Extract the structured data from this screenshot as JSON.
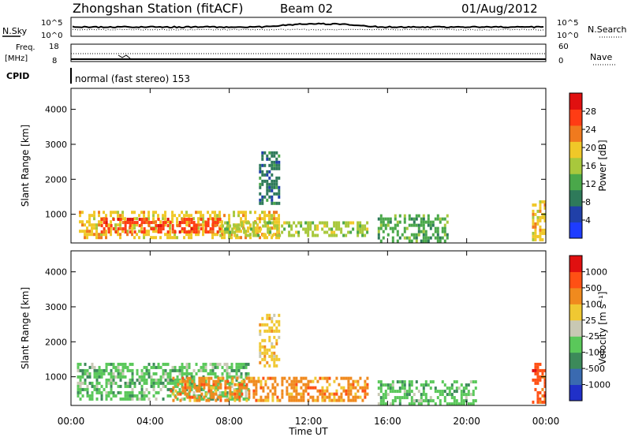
{
  "header": {
    "station": "Zhongshan Station (fitACF)",
    "beam": "Beam 02",
    "date": "01/Aug/2012"
  },
  "top_panels": {
    "nsky_label": "N.Sky",
    "nsky_ticks": [
      "10^5",
      "10^0"
    ],
    "nsearch_label": "N.Search",
    "nsearch_ticks": [
      "10^5",
      "10^0"
    ],
    "freq_label": "Freq.",
    "freq_unit": "[MHz]",
    "freq_ticks": [
      "18",
      "8"
    ],
    "nave_label": "Nave",
    "nave_ticks": [
      "60",
      "0"
    ],
    "cpid_label": "CPID",
    "cpid_text": "normal (fast stereo) 153"
  },
  "x_axis": {
    "title": "Time UT",
    "ticks": [
      "00:00",
      "04:00",
      "08:00",
      "12:00",
      "16:00",
      "20:00",
      "00:00"
    ]
  },
  "power_panel": {
    "ylabel": "Slant Range [km]",
    "yticks": [
      "4000",
      "3000",
      "2000",
      "1000"
    ],
    "cbar_label": "Power [dB]",
    "cbar_ticks": [
      "28",
      "24",
      "20",
      "16",
      "12",
      "8",
      "4"
    ],
    "cbar_colors": [
      "#1e3cff",
      "#2040a8",
      "#2e7a5a",
      "#4aa84a",
      "#a8c83c",
      "#f0c828",
      "#f07a1e",
      "#ff3c14",
      "#e01010"
    ]
  },
  "velocity_panel": {
    "ylabel": "Slant Range [km]",
    "yticks": [
      "4000",
      "3000",
      "2000",
      "1000"
    ],
    "cbar_label": "Velocity [m s⁻¹]",
    "cbar_ticks": [
      "1000",
      "500",
      "100",
      "25",
      "-25",
      "-100",
      "-500",
      "-1000"
    ],
    "cbar_colors": [
      "#2030c8",
      "#3a6ab0",
      "#3c8a5a",
      "#5ac85a",
      "#c8c8b4",
      "#f0c832",
      "#f08a1e",
      "#ff5014",
      "#e01010"
    ]
  },
  "chart_data": {
    "type": "heatmap",
    "x_range_hours": [
      0,
      24
    ],
    "y_range_km": [
      180,
      4600
    ],
    "power_bands": [
      {
        "t0": 0.4,
        "t1": 10.5,
        "r0": 300,
        "r1": 1100,
        "level": 20
      },
      {
        "t0": 1.5,
        "t1": 7.5,
        "r0": 500,
        "r1": 900,
        "level": 28
      },
      {
        "t0": 7.5,
        "t1": 15.0,
        "r0": 400,
        "r1": 800,
        "level": 16
      },
      {
        "t0": 9.5,
        "t1": 10.5,
        "r0": 1300,
        "r1": 2800,
        "level": 8
      },
      {
        "t0": 15.5,
        "t1": 19.0,
        "r0": 250,
        "r1": 1000,
        "level": 12
      },
      {
        "t0": 23.3,
        "t1": 24.0,
        "r0": 250,
        "r1": 1400,
        "level": 20
      }
    ],
    "velocity_bands": [
      {
        "t0": 0.3,
        "t1": 9.0,
        "r0": 350,
        "r1": 1400,
        "velocity": -300
      },
      {
        "t0": 5.0,
        "t1": 15.0,
        "r0": 350,
        "r1": 1000,
        "velocity": 100
      },
      {
        "t0": 9.5,
        "t1": 10.5,
        "r0": 1300,
        "r1": 2800,
        "velocity": 25
      },
      {
        "t0": 15.5,
        "t1": 20.5,
        "r0": 250,
        "r1": 900,
        "velocity": -300
      },
      {
        "t0": 23.3,
        "t1": 24.0,
        "r0": 250,
        "r1": 1400,
        "velocity": 500
      }
    ]
  }
}
